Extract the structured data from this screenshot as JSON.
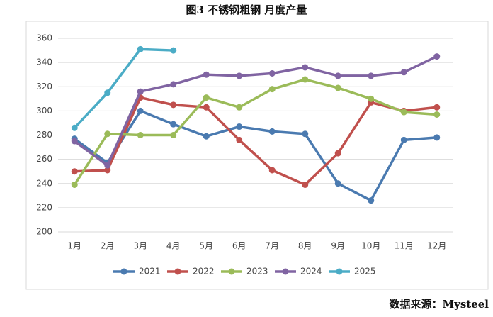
{
  "chart_data": {
    "type": "line",
    "title": "图3 不锈钢粗钢 月度产量",
    "categories": [
      "1月",
      "2月",
      "3月",
      "4月",
      "5月",
      "6月",
      "7月",
      "8月",
      "9月",
      "10月",
      "11月",
      "12月"
    ],
    "series": [
      {
        "name": "2021",
        "color": "#4a7ab0",
        "values": [
          277,
          257,
          300,
          289,
          279,
          287,
          283,
          281,
          240,
          226,
          276,
          278
        ]
      },
      {
        "name": "2022",
        "color": "#c0504d",
        "values": [
          250,
          251,
          311,
          305,
          303,
          276,
          251,
          239,
          265,
          307,
          300,
          303
        ]
      },
      {
        "name": "2023",
        "color": "#9bbb59",
        "values": [
          239,
          281,
          280,
          280,
          311,
          303,
          318,
          326,
          319,
          310,
          299,
          297
        ]
      },
      {
        "name": "2024",
        "color": "#8064a2",
        "values": [
          275,
          255,
          316,
          322,
          330,
          329,
          331,
          336,
          329,
          329,
          332,
          345
        ]
      },
      {
        "name": "2025",
        "color": "#4bacc6",
        "values": [
          286,
          315,
          351,
          350,
          null,
          null,
          null,
          null,
          null,
          null,
          null,
          null
        ]
      }
    ],
    "ylim": [
      200,
      360
    ],
    "yticks": [
      200,
      220,
      240,
      260,
      280,
      300,
      320,
      340,
      360
    ],
    "grid": true,
    "legend": "bottom",
    "source": "数据来源：Mysteel"
  }
}
